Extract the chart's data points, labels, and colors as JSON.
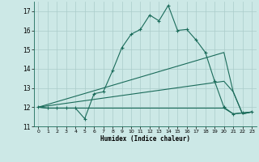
{
  "title": "",
  "xlabel": "Humidex (Indice chaleur)",
  "xlim": [
    -0.5,
    23.5
  ],
  "ylim": [
    11,
    17.5
  ],
  "yticks": [
    11,
    12,
    13,
    14,
    15,
    16,
    17
  ],
  "xticks": [
    0,
    1,
    2,
    3,
    4,
    5,
    6,
    7,
    8,
    9,
    10,
    11,
    12,
    13,
    14,
    15,
    16,
    17,
    18,
    19,
    20,
    21,
    22,
    23
  ],
  "background_color": "#cce8e6",
  "grid_color": "#aaccca",
  "line_color": "#1a6b5a",
  "series": {
    "line1": {
      "x": [
        0,
        1,
        2,
        3,
        4,
        5,
        6,
        7,
        8,
        9,
        10,
        11,
        12,
        13,
        14,
        15,
        16,
        17,
        18,
        19,
        20,
        21,
        22,
        23
      ],
      "y": [
        12.0,
        11.95,
        11.95,
        11.95,
        11.95,
        11.4,
        12.7,
        12.8,
        13.9,
        15.1,
        15.8,
        16.05,
        16.8,
        16.5,
        17.3,
        16.0,
        16.05,
        15.5,
        14.85,
        13.35,
        12.0,
        11.65,
        11.7,
        11.75
      ]
    },
    "line2": {
      "x": [
        0,
        1,
        2,
        3,
        4,
        5,
        6,
        7,
        8,
        9,
        10,
        11,
        12,
        13,
        14,
        15,
        16,
        17,
        18,
        19,
        20,
        21,
        22,
        23
      ],
      "y": [
        12.0,
        11.95,
        11.95,
        11.95,
        11.95,
        11.95,
        11.95,
        11.95,
        11.95,
        11.95,
        11.95,
        11.95,
        11.95,
        11.95,
        11.95,
        11.95,
        11.95,
        11.95,
        11.95,
        11.95,
        11.95,
        11.65,
        11.7,
        11.75
      ]
    },
    "line3": {
      "x": [
        0,
        20,
        21,
        22,
        23
      ],
      "y": [
        12.0,
        14.85,
        12.8,
        11.65,
        11.75
      ]
    },
    "line4": {
      "x": [
        0,
        20,
        21,
        22,
        23
      ],
      "y": [
        12.0,
        13.35,
        12.8,
        11.65,
        11.75
      ]
    }
  }
}
